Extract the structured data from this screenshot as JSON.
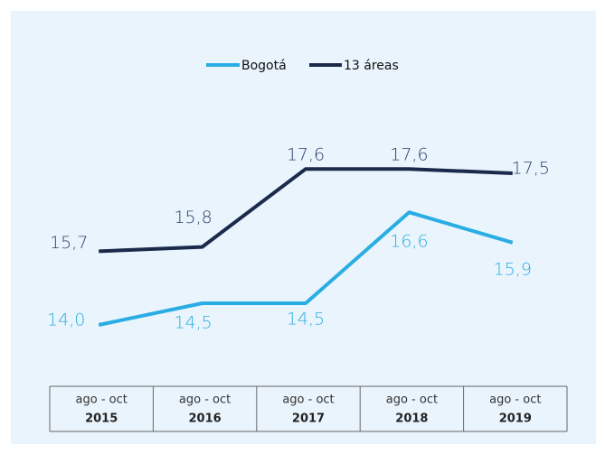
{
  "chart_data": {
    "type": "line",
    "categories": [
      {
        "period": "ago - oct",
        "year": "2015"
      },
      {
        "period": "ago - oct",
        "year": "2016"
      },
      {
        "period": "ago - oct",
        "year": "2017"
      },
      {
        "period": "ago - oct",
        "year": "2018"
      },
      {
        "period": "ago - oct",
        "year": "2019"
      }
    ],
    "series": [
      {
        "name": "Bogotá",
        "color": "#2aade3",
        "values": [
          14.0,
          14.5,
          14.5,
          16.6,
          15.9
        ],
        "value_labels": [
          "14,0",
          "14,5",
          "14,5",
          "16,6",
          "15,9"
        ]
      },
      {
        "name": "13 áreas",
        "color": "#1b2a4b",
        "values": [
          15.7,
          15.8,
          17.6,
          17.6,
          17.5
        ],
        "value_labels": [
          "15,7",
          "15,8",
          "17,6",
          "17,6",
          "17,5"
        ]
      }
    ],
    "ylim": [
      13,
      19
    ]
  }
}
